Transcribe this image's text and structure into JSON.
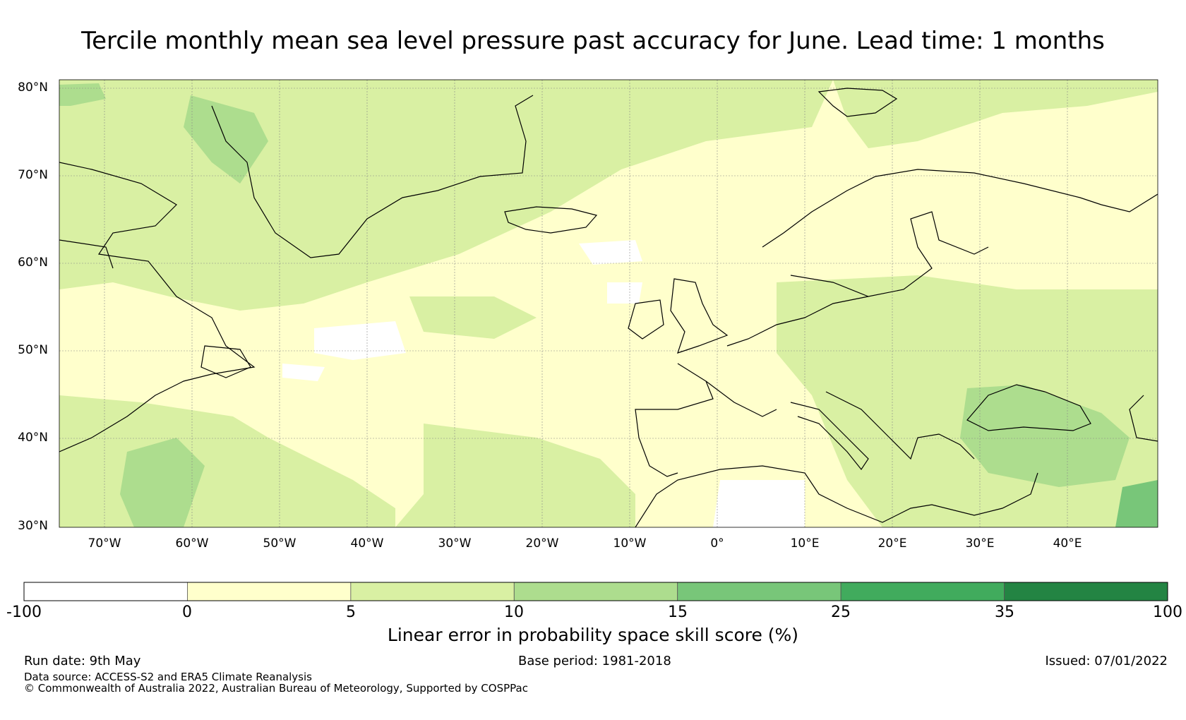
{
  "title": "Tercile monthly mean sea level pressure past accuracy for June. Lead time: 1 months",
  "lat_labels": [
    "80°N",
    "70°N",
    "60°N",
    "50°N",
    "40°N",
    "30°N"
  ],
  "lon_labels": [
    "70°W",
    "60°W",
    "50°W",
    "40°W",
    "30°W",
    "20°W",
    "10°W",
    "0°",
    "10°E",
    "20°E",
    "30°E",
    "40°E"
  ],
  "colorbar": {
    "ticks": [
      "-100",
      "0",
      "5",
      "10",
      "15",
      "25",
      "35",
      "100"
    ],
    "colors": [
      "#ffffff",
      "#ffffcc",
      "#d9f0a3",
      "#addd8e",
      "#78c679",
      "#41ab5d",
      "#238443"
    ],
    "label": "Linear error in probability space skill score (%)"
  },
  "footer": {
    "run_date": "Run date: 9th May",
    "base_period": "Base period: 1981-2018",
    "issued": "Issued: 07/01/2022",
    "data_source": "Data source: ACCESS-S2 and ERA5 Climate Reanalysis",
    "copyright": "© Commonwealth of Australia 2022, Australian Bureau of Meteorology, Supported by COSPPac"
  }
}
